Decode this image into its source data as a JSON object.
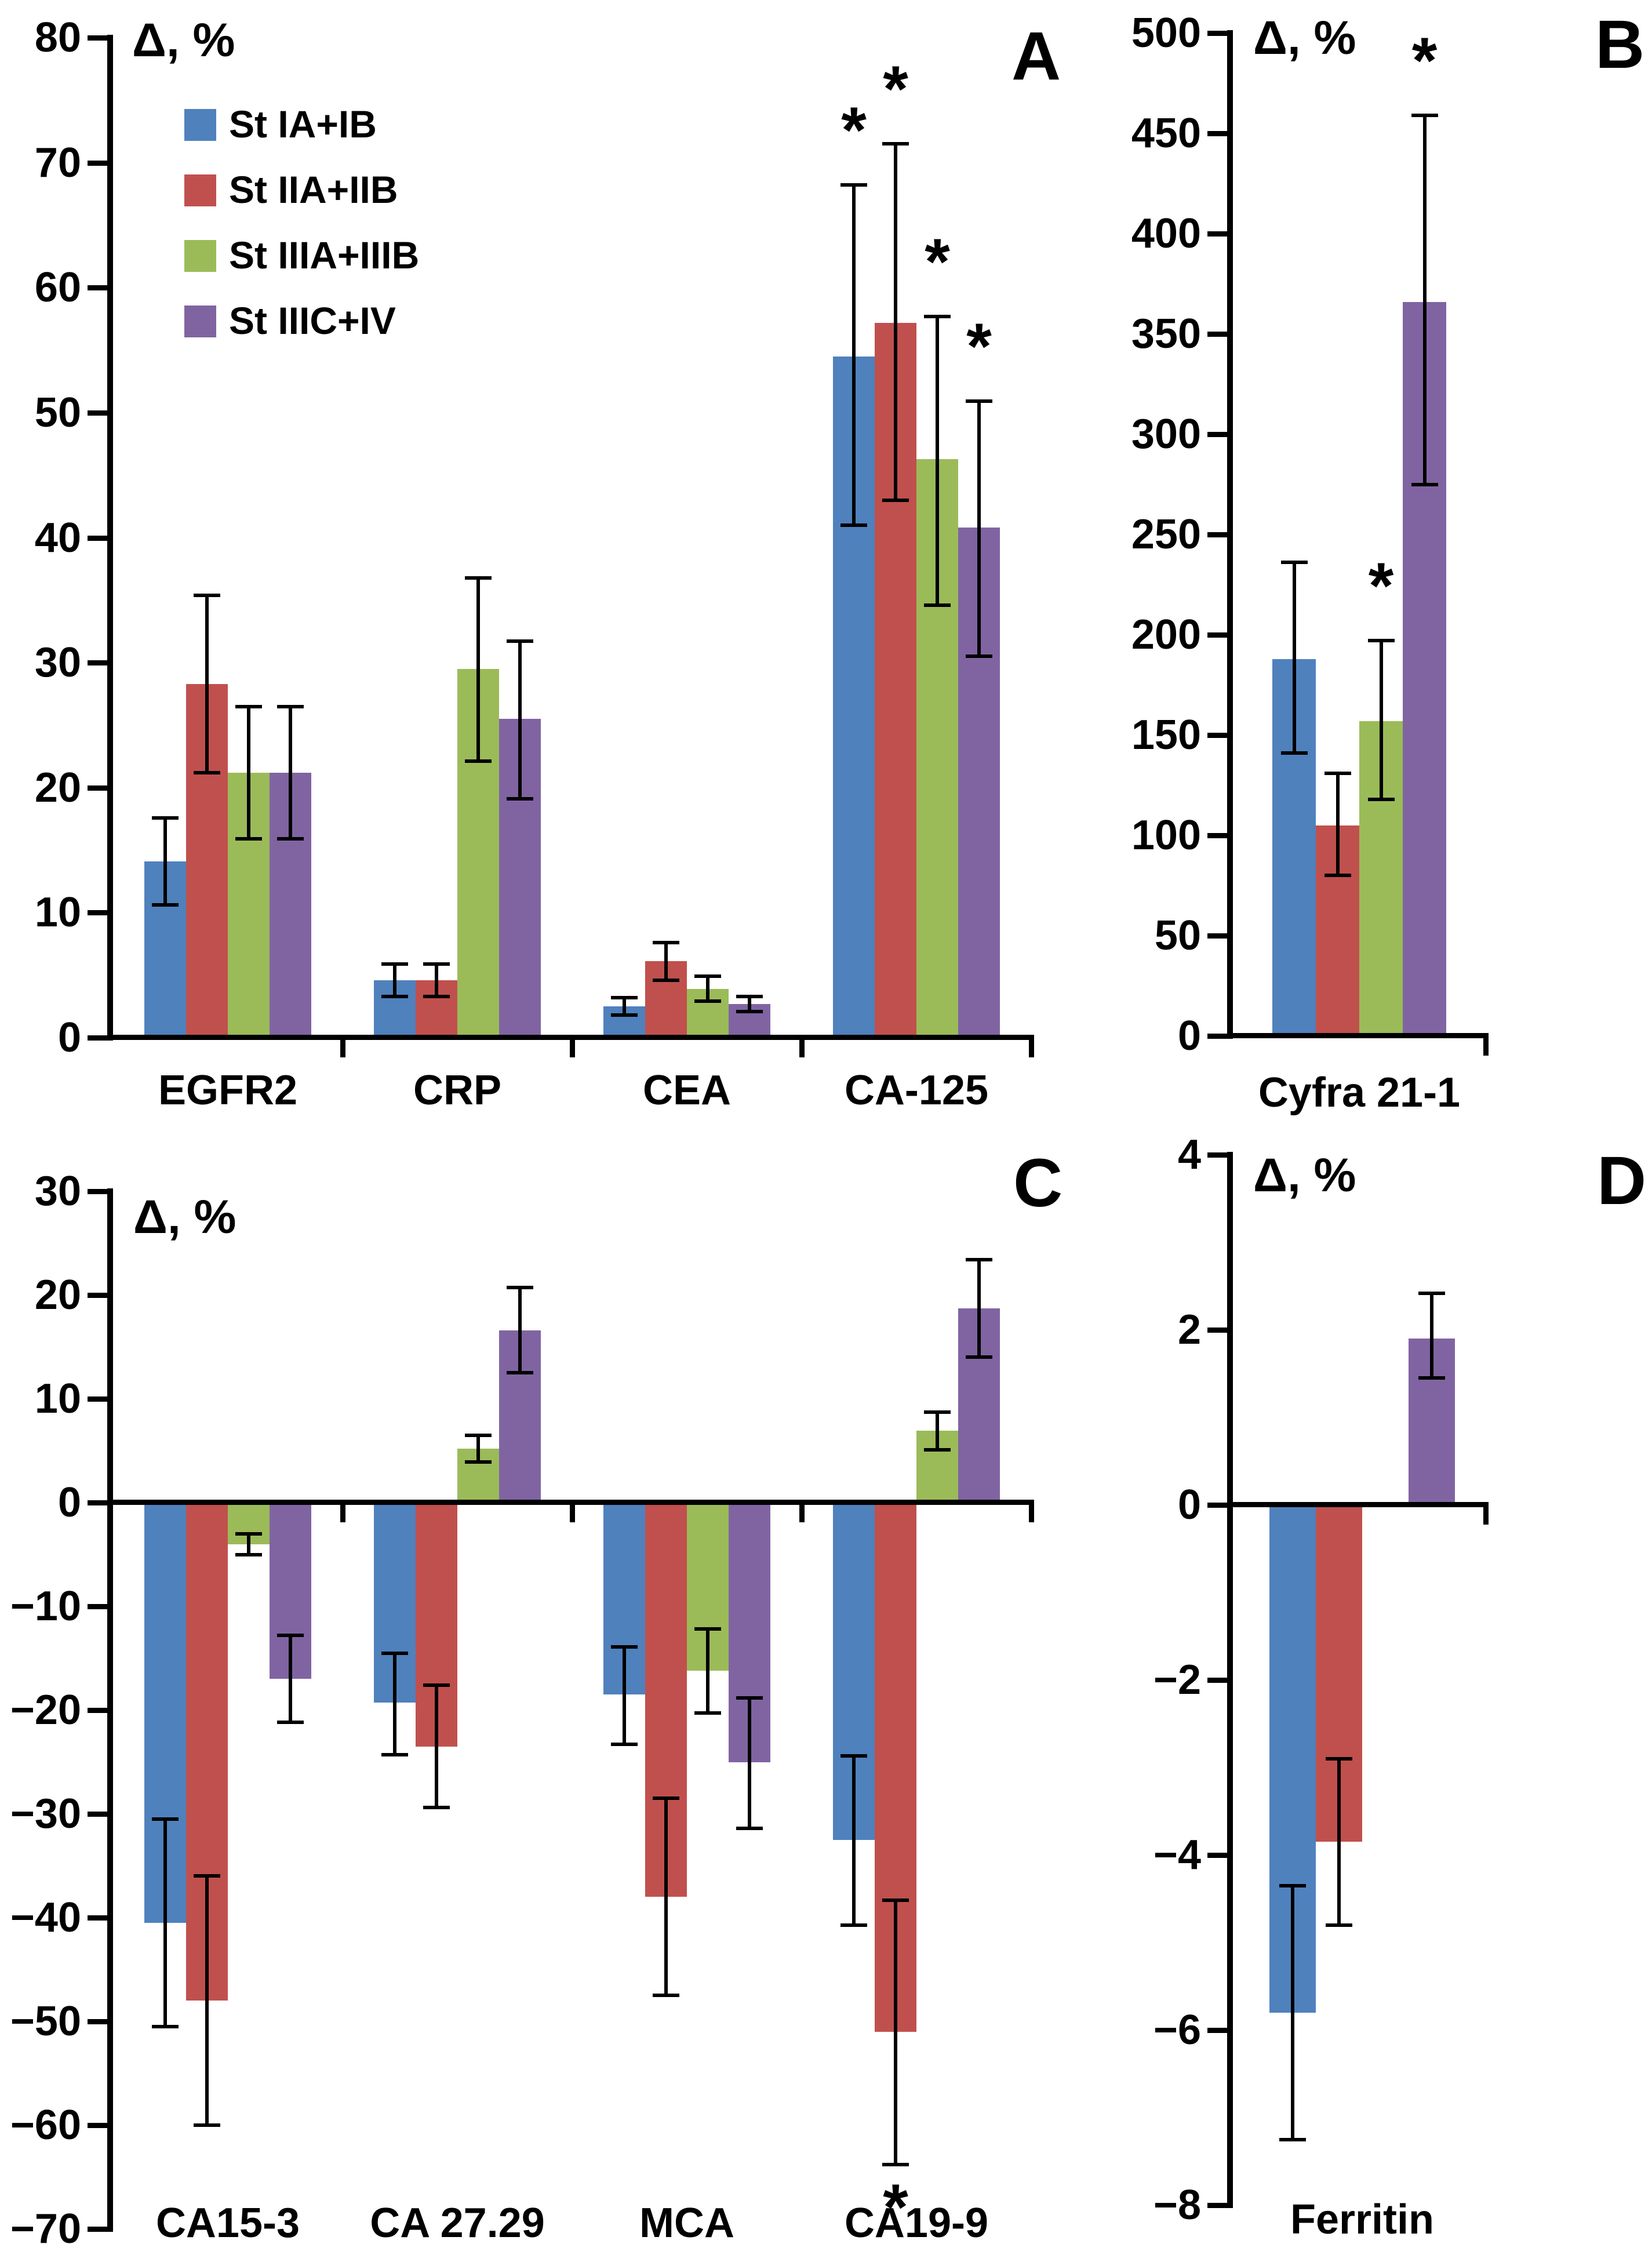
{
  "figure": {
    "background": "#ffffff",
    "series_colors": {
      "blue": "#4F81BD",
      "red": "#C0504D",
      "green": "#9BBB59",
      "purple": "#8064A2"
    },
    "legend": {
      "items": [
        {
          "label": "St IA+IB",
          "color_key": "blue"
        },
        {
          "label": "St IIA+IIB",
          "color_key": "red"
        },
        {
          "label": "St IIIA+IIIB",
          "color_key": "green"
        },
        {
          "label": "St IIIC+IV",
          "color_key": "purple"
        }
      ]
    },
    "significance_marker": "*"
  },
  "chart_data": [
    {
      "type": "bar",
      "panel_letter": "A",
      "ylabel": "Δ, %",
      "ylim": [
        0,
        80
      ],
      "ytick_step": 10,
      "yticks": [
        [
          0,
          "0"
        ],
        [
          10,
          "10"
        ],
        [
          20,
          "20"
        ],
        [
          30,
          "30"
        ],
        [
          40,
          "40"
        ],
        [
          50,
          "50"
        ],
        [
          60,
          "60"
        ],
        [
          70,
          "70"
        ],
        [
          80,
          "80"
        ]
      ],
      "grid": false,
      "legend_position": "upper-left",
      "categories": [
        "EGFR2",
        "CRP",
        "CEA",
        "CA-125"
      ],
      "series": [
        {
          "name": "St IA+IB",
          "color_key": "blue",
          "values": [
            14.1,
            4.6,
            2.5,
            54.5
          ],
          "errors": [
            [
              10.6,
              17.6
            ],
            [
              3.3,
              5.9
            ],
            [
              1.8,
              3.2
            ],
            [
              41.0,
              68.2
            ]
          ],
          "sig": [
            null,
            null,
            null,
            "above"
          ]
        },
        {
          "name": "St IIA+IIB",
          "color_key": "red",
          "values": [
            28.3,
            4.6,
            6.1,
            57.2
          ],
          "errors": [
            [
              21.2,
              35.4
            ],
            [
              3.3,
              5.9
            ],
            [
              4.6,
              7.6
            ],
            [
              43.0,
              71.5
            ]
          ],
          "sig": [
            null,
            null,
            null,
            "above"
          ]
        },
        {
          "name": "St IIIA+IIIB",
          "color_key": "green",
          "values": [
            21.2,
            29.5,
            3.9,
            46.3
          ],
          "errors": [
            [
              15.9,
              26.5
            ],
            [
              22.1,
              36.8
            ],
            [
              2.9,
              4.9
            ],
            [
              34.6,
              57.7
            ]
          ],
          "sig": [
            null,
            null,
            null,
            "above"
          ]
        },
        {
          "name": "St IIIC+IV",
          "color_key": "purple",
          "values": [
            21.2,
            25.5,
            2.7,
            40.8
          ],
          "errors": [
            [
              15.9,
              26.5
            ],
            [
              19.1,
              31.7
            ],
            [
              2.1,
              3.3
            ],
            [
              30.5,
              50.9
            ]
          ],
          "sig": [
            null,
            null,
            null,
            "above"
          ]
        }
      ]
    },
    {
      "type": "bar",
      "panel_letter": "B",
      "ylabel": "Δ, %",
      "ylim": [
        0,
        500
      ],
      "ytick_step": 50,
      "yticks": [
        [
          0,
          "0"
        ],
        [
          50,
          "50"
        ],
        [
          100,
          "100"
        ],
        [
          150,
          "150"
        ],
        [
          200,
          "200"
        ],
        [
          250,
          "250"
        ],
        [
          300,
          "300"
        ],
        [
          350,
          "350"
        ],
        [
          400,
          "400"
        ],
        [
          450,
          "450"
        ],
        [
          500,
          "500"
        ]
      ],
      "grid": false,
      "categories": [
        "Cyfra 21-1"
      ],
      "series": [
        {
          "name": "St IA+IB",
          "color_key": "blue",
          "values": [
            188
          ],
          "errors": [
            [
              141,
              236
            ]
          ],
          "sig": [
            null
          ]
        },
        {
          "name": "St IIA+IIB",
          "color_key": "red",
          "values": [
            105
          ],
          "errors": [
            [
              80,
              131
            ]
          ],
          "sig": [
            null
          ]
        },
        {
          "name": "St IIIA+IIIB",
          "color_key": "green",
          "values": [
            157
          ],
          "errors": [
            [
              118,
              197
            ]
          ],
          "sig": [
            "above"
          ]
        },
        {
          "name": "St IIIC+IV",
          "color_key": "purple",
          "values": [
            366
          ],
          "errors": [
            [
              275,
              459
            ]
          ],
          "sig": [
            "above"
          ]
        }
      ]
    },
    {
      "type": "bar",
      "panel_letter": "C",
      "ylabel": "Δ, %",
      "ylim": [
        -70,
        30
      ],
      "ytick_step": 10,
      "yticks": [
        [
          30,
          "30"
        ],
        [
          20,
          "20"
        ],
        [
          10,
          "10"
        ],
        [
          0,
          "0"
        ],
        [
          -10,
          "−10"
        ],
        [
          -20,
          "−20"
        ],
        [
          -30,
          "−30"
        ],
        [
          -40,
          "−40"
        ],
        [
          -50,
          "−50"
        ],
        [
          -60,
          "−60"
        ],
        [
          -70,
          "−70"
        ]
      ],
      "grid": false,
      "categories": [
        "CA15-3",
        "CA 27.29",
        "MCA",
        "CA19-9"
      ],
      "series": [
        {
          "name": "St IA+IB",
          "color_key": "blue",
          "values": [
            -40.5,
            -19.3,
            -18.5,
            -32.5
          ],
          "errors": [
            [
              -50.5,
              -30.5
            ],
            [
              -24.3,
              -14.5
            ],
            [
              -23.3,
              -13.9
            ],
            [
              -40.7,
              -24.4
            ]
          ],
          "sig": [
            null,
            null,
            null,
            null
          ]
        },
        {
          "name": "St IIA+IIB",
          "color_key": "red",
          "values": [
            -48.0,
            -23.5,
            -38.0,
            -51.0
          ],
          "errors": [
            [
              -60.0,
              -36.0
            ],
            [
              -29.4,
              -17.6
            ],
            [
              -47.5,
              -28.5
            ],
            [
              -63.8,
              -38.3
            ]
          ],
          "sig": [
            null,
            null,
            null,
            "below"
          ]
        },
        {
          "name": "St IIIA+IIIB",
          "color_key": "green",
          "values": [
            -4.0,
            5.2,
            -16.2,
            6.9
          ],
          "errors": [
            [
              -5.0,
              -3.0
            ],
            [
              3.9,
              6.5
            ],
            [
              -20.3,
              -12.2
            ],
            [
              5.1,
              8.7
            ]
          ],
          "sig": [
            null,
            null,
            null,
            null
          ]
        },
        {
          "name": "St IIIC+IV",
          "color_key": "purple",
          "values": [
            -17.0,
            16.6,
            -25.0,
            18.7
          ],
          "errors": [
            [
              -21.2,
              -12.8
            ],
            [
              12.5,
              20.7
            ],
            [
              -31.4,
              -18.8
            ],
            [
              14.0,
              23.4
            ]
          ],
          "sig": [
            null,
            null,
            null,
            null
          ]
        }
      ]
    },
    {
      "type": "bar",
      "panel_letter": "D",
      "ylabel": "Δ, %",
      "ylim": [
        -8,
        4
      ],
      "ytick_step": 2,
      "yticks": [
        [
          4,
          "4"
        ],
        [
          2,
          "2"
        ],
        [
          0,
          "0"
        ],
        [
          -2,
          "−2"
        ],
        [
          -4,
          "−4"
        ],
        [
          -6,
          "−6"
        ],
        [
          -8,
          "−8"
        ]
      ],
      "grid": false,
      "categories": [
        "Ferritin"
      ],
      "series": [
        {
          "name": "St IA+IB",
          "color_key": "blue",
          "values": [
            -5.8
          ],
          "errors": [
            [
              -7.25,
              -4.35
            ]
          ],
          "sig": [
            null
          ]
        },
        {
          "name": "St IIA+IIB",
          "color_key": "red",
          "values": [
            -3.85
          ],
          "errors": [
            [
              -4.8,
              -2.9
            ]
          ],
          "sig": [
            null
          ]
        },
        {
          "name": "St IIIA+IIIB",
          "color_key": "green",
          "values": [
            null
          ],
          "errors": [
            null
          ],
          "sig": [
            null
          ]
        },
        {
          "name": "St IIIC+IV",
          "color_key": "purple",
          "values": [
            1.9
          ],
          "errors": [
            [
              1.45,
              2.42
            ]
          ],
          "sig": [
            null
          ]
        }
      ]
    }
  ]
}
